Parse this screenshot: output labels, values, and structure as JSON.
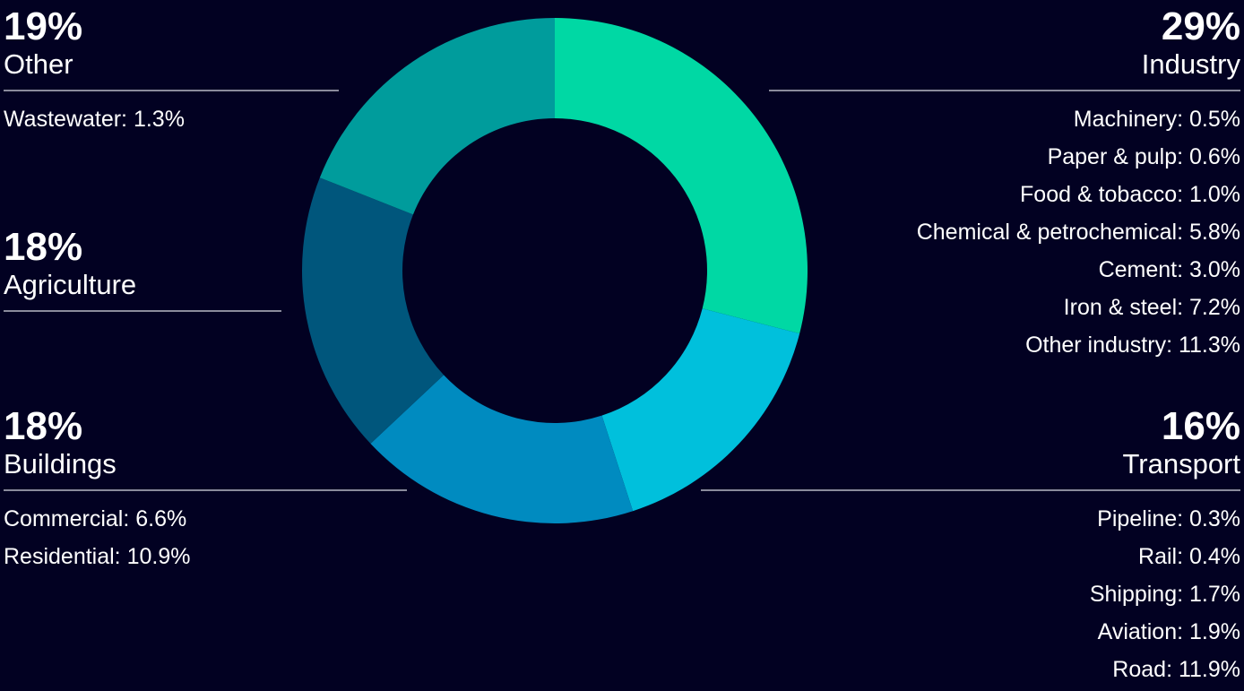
{
  "chart_data": {
    "type": "pie",
    "style": "donut",
    "title": "",
    "segments": [
      {
        "name": "Industry",
        "value": 29,
        "value_label": "29%",
        "color": "#00d8a4",
        "side": "right",
        "items": [
          "Machinery: 0.5%",
          "Paper & pulp: 0.6%",
          "Food & tobacco: 1.0%",
          "Chemical & petrochemical: 5.8%",
          "Cement: 3.0%",
          "Iron & steel: 7.2%",
          "Other industry: 11.3%"
        ]
      },
      {
        "name": "Transport",
        "value": 16,
        "value_label": "16%",
        "color": "#00c0dc",
        "side": "right",
        "items": [
          "Pipeline: 0.3%",
          "Rail: 0.4%",
          "Shipping: 1.7%",
          "Aviation: 1.9%",
          "Road: 11.9%"
        ]
      },
      {
        "name": "Buildings",
        "value": 18,
        "value_label": "18%",
        "color": "#008bc0",
        "side": "left",
        "items": [
          "Commercial: 6.6%",
          "Residential: 10.9%"
        ]
      },
      {
        "name": "Agriculture",
        "value": 18,
        "value_label": "18%",
        "color": "#00567c",
        "side": "left",
        "items": []
      },
      {
        "name": "Other",
        "value": 19,
        "value_label": "19%",
        "color": "#009c9c",
        "side": "left",
        "items": [
          "Wastewater: 1.3%"
        ]
      }
    ]
  }
}
